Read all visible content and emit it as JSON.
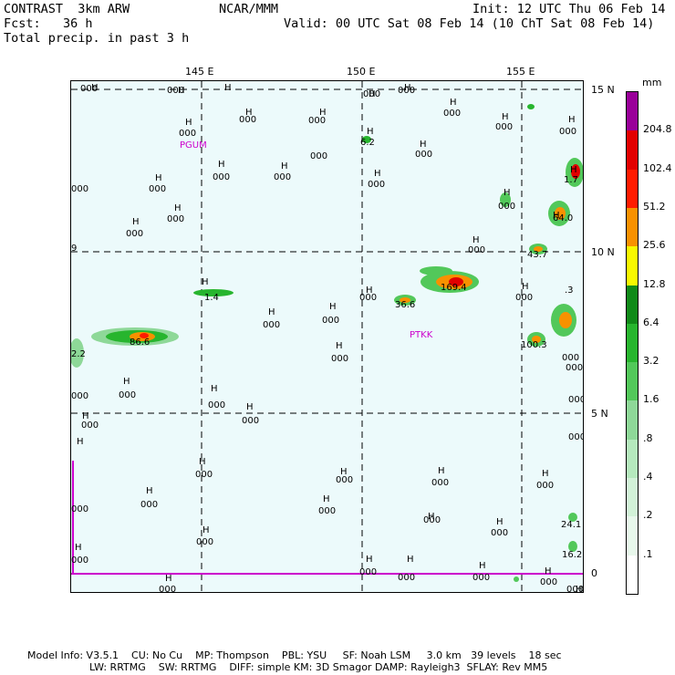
{
  "header": {
    "left1": "CONTRAST  3km ARW",
    "left2": "Fcst:   36 h",
    "left3": "Total precip. in past 3 h",
    "center": "NCAR/MMM",
    "right1": "Init: 12 UTC Thu 06 Feb 14",
    "right2": "Valid: 00 UTC Sat 08 Feb 14 (10 ChT Sat 08 Feb 14)"
  },
  "axes": {
    "lon_labels": [
      "145 E",
      "150 E",
      "155 E"
    ],
    "lat_labels": [
      "15 N",
      "10 N",
      "5 N",
      "0"
    ],
    "units": "mm"
  },
  "colorbar": {
    "levels": [
      "204.8",
      "102.4",
      "51.2",
      "25.6",
      "12.8",
      "6.4",
      "3.2",
      "1.6",
      ".8",
      ".4",
      ".2",
      ".1"
    ],
    "colors": [
      "#ffffff",
      "#e8f8ec",
      "#d2f2d8",
      "#b5e9bd",
      "#8ed898",
      "#52c85a",
      "#27b52e",
      "#108a18",
      "#f8f800",
      "#f89100",
      "#ff1b00",
      "#e20000",
      "#990099"
    ]
  },
  "stations": [
    {
      "name": "PGUM"
    },
    {
      "name": "PTKK"
    }
  ],
  "map_labels": [
    {
      "t": "H",
      "x": "22",
      "y": "10"
    },
    {
      "t": "H",
      "x": "117",
      "y": "13"
    },
    {
      "t": "H",
      "x": "168",
      "y": "10"
    },
    {
      "t": "H",
      "x": "326",
      "y": "17"
    },
    {
      "t": "H",
      "x": "365",
      "y": "10"
    },
    {
      "t": "H",
      "x": "415",
      "y": "26"
    },
    {
      "t": "H",
      "x": "191",
      "y": "37"
    },
    {
      "t": "H",
      "x": "272",
      "y": "37"
    },
    {
      "t": "H",
      "x": "472",
      "y": "42"
    },
    {
      "t": "H",
      "x": "125",
      "y": "48"
    },
    {
      "t": "H",
      "x": "324",
      "y": "58"
    },
    {
      "t": "H",
      "x": "382",
      "y": "72"
    },
    {
      "t": "H",
      "x": "545",
      "y": "45"
    },
    {
      "t": "H",
      "x": "547",
      "y": "100"
    },
    {
      "t": "H",
      "x": "161",
      "y": "94"
    },
    {
      "t": "H",
      "x": "230",
      "y": "96"
    },
    {
      "t": "H",
      "x": "92",
      "y": "109"
    },
    {
      "t": "H",
      "x": "332",
      "y": "104"
    },
    {
      "t": "H",
      "x": "113",
      "y": "142"
    },
    {
      "t": "H",
      "x": "67",
      "y": "157"
    },
    {
      "t": "H",
      "x": "474",
      "y": "125"
    },
    {
      "t": "H",
      "x": "528",
      "y": "150"
    },
    {
      "t": "H",
      "x": "440",
      "y": "177"
    },
    {
      "t": "H",
      "x": "494",
      "y": "228"
    },
    {
      "t": "H",
      "x": "143",
      "y": "223"
    },
    {
      "t": "H",
      "x": "323",
      "y": "232"
    },
    {
      "t": "H",
      "x": "216",
      "y": "256"
    },
    {
      "t": "H",
      "x": "283",
      "y": "250"
    },
    {
      "t": "H",
      "x": "290",
      "y": "293"
    },
    {
      "t": "H",
      "x": "57",
      "y": "332"
    },
    {
      "t": "H",
      "x": "153",
      "y": "340"
    },
    {
      "t": "H",
      "x": "192",
      "y": "360"
    },
    {
      "t": "H",
      "x": "12",
      "y": "370"
    },
    {
      "t": "H",
      "x": "6",
      "y": "398"
    },
    {
      "t": "H",
      "x": "140",
      "y": "420"
    },
    {
      "t": "H",
      "x": "295",
      "y": "431"
    },
    {
      "t": "H",
      "x": "402",
      "y": "430"
    },
    {
      "t": "H",
      "x": "516",
      "y": "433"
    },
    {
      "t": "H",
      "x": "82",
      "y": "452"
    },
    {
      "t": "H",
      "x": "276",
      "y": "461"
    },
    {
      "t": "H",
      "x": "391",
      "y": "480"
    },
    {
      "t": "H",
      "x": "466",
      "y": "486"
    },
    {
      "t": "H",
      "x": "144",
      "y": "495"
    },
    {
      "t": "H",
      "x": "4",
      "y": "514"
    },
    {
      "t": "H",
      "x": "323",
      "y": "527"
    },
    {
      "t": "H",
      "x": "368",
      "y": "527"
    },
    {
      "t": "H",
      "x": "447",
      "y": "534"
    },
    {
      "t": "H",
      "x": "519",
      "y": "540"
    },
    {
      "t": "H",
      "x": "103",
      "y": "548"
    },
    {
      "t": "H",
      "x": "553",
      "y": "560"
    },
    {
      "t": "000",
      "x": "10",
      "y": "11"
    },
    {
      "t": "000",
      "x": "105",
      "y": "13"
    },
    {
      "t": "000",
      "x": "320",
      "y": "17"
    },
    {
      "t": "000",
      "x": "358",
      "y": "13"
    },
    {
      "t": "000",
      "x": "408",
      "y": "38"
    },
    {
      "t": "000",
      "x": "184",
      "y": "45"
    },
    {
      "t": "000",
      "x": "260",
      "y": "46"
    },
    {
      "t": "000",
      "x": "535",
      "y": "58"
    },
    {
      "t": "000",
      "x": "118",
      "y": "60"
    },
    {
      "t": "000",
      "x": "465",
      "y": "53"
    },
    {
      "t": "000",
      "x": "262",
      "y": "85"
    },
    {
      "t": "000",
      "x": "377",
      "y": "83"
    },
    {
      "t": "000",
      "x": "155",
      "y": "108"
    },
    {
      "t": "000",
      "x": "222",
      "y": "108"
    },
    {
      "t": "000",
      "x": "85",
      "y": "121"
    },
    {
      "t": "000",
      "x": "325",
      "y": "116"
    },
    {
      "t": "000",
      "x": "468",
      "y": "140"
    },
    {
      "t": "000",
      "x": "105",
      "y": "154"
    },
    {
      "t": "000",
      "x": "60",
      "y": "170"
    },
    {
      "t": "000",
      "x": "435",
      "y": "188"
    },
    {
      "t": "000",
      "x": "487",
      "y": "240"
    },
    {
      "t": "000",
      "x": "316",
      "y": "240"
    },
    {
      "t": "000",
      "x": "275",
      "y": "265"
    },
    {
      "t": "000",
      "x": "210",
      "y": "270"
    },
    {
      "t": "000",
      "x": "285",
      "y": "307"
    },
    {
      "t": "000",
      "x": "52",
      "y": "347"
    },
    {
      "t": "000",
      "x": "150",
      "y": "358"
    },
    {
      "t": "000",
      "x": "187",
      "y": "375"
    },
    {
      "t": "000",
      "x": "11",
      "y": "380"
    },
    {
      "t": "000",
      "x": "136",
      "y": "434"
    },
    {
      "t": "000",
      "x": "290",
      "y": "440"
    },
    {
      "t": "000",
      "x": "395",
      "y": "443"
    },
    {
      "t": "000",
      "x": "510",
      "y": "446"
    },
    {
      "t": "000",
      "x": "76",
      "y": "467"
    },
    {
      "t": "000",
      "x": "271",
      "y": "474"
    },
    {
      "t": "000",
      "x": "386",
      "y": "484"
    },
    {
      "t": "000",
      "x": "460",
      "y": "498"
    },
    {
      "t": "000",
      "x": "137",
      "y": "508"
    },
    {
      "t": "000",
      "x": "0",
      "y": "528"
    },
    {
      "t": "000",
      "x": "316",
      "y": "541"
    },
    {
      "t": "000",
      "x": "358",
      "y": "547"
    },
    {
      "t": "000",
      "x": "440",
      "y": "547"
    },
    {
      "t": "000",
      "x": "514",
      "y": "552"
    },
    {
      "t": "000",
      "x": "96",
      "y": "560"
    },
    {
      "t": "000",
      "x": "543",
      "y": "560"
    },
    {
      "t": "000",
      "x": "538",
      "y": "306"
    },
    {
      "t": "000",
      "x": "542",
      "y": "317"
    },
    {
      "t": "000",
      "x": "545",
      "y": "352"
    },
    {
      "t": "000",
      "x": "545",
      "y": "393"
    },
    {
      "t": "000",
      "x": "0",
      "y": "121"
    },
    {
      "t": "000",
      "x": "0",
      "y": "348"
    },
    {
      "t": "000",
      "x": "0",
      "y": "472"
    },
    {
      "t": "9",
      "x": "0",
      "y": "186"
    },
    {
      "t": "6.2",
      "x": "317",
      "y": "70"
    },
    {
      "t": "1.7",
      "x": "540",
      "y": "111"
    },
    {
      "t": "64.0",
      "x": "528",
      "y": "153"
    },
    {
      "t": "43.7",
      "x": "500",
      "y": "193"
    },
    {
      "t": "169.4",
      "x": "405",
      "y": "229"
    },
    {
      "t": "36.6",
      "x": "355",
      "y": "248"
    },
    {
      "t": ".3",
      "x": "541",
      "y": "232"
    },
    {
      "t": "1.4",
      "x": "146",
      "y": "240"
    },
    {
      "t": "86.6",
      "x": "64",
      "y": "289"
    },
    {
      "t": "100.3",
      "x": "493",
      "y": "292"
    },
    {
      "t": "2.2",
      "x": "0",
      "y": "302"
    },
    {
      "t": "24.1",
      "x": "537",
      "y": "489"
    },
    {
      "t": "16.2",
      "x": "538",
      "y": "522"
    }
  ],
  "footer": {
    "line1": "Model Info: V3.5.1    CU: No Cu    MP: Thompson    PBL: YSU     SF: Noah LSM     3.0 km   39 levels    18 sec",
    "line2": "LW: RRTMG    SW: RRTMG    DIFF: simple KM: 3D Smagor DAMP: Rayleigh3  SFLAY: Rev MM5"
  }
}
